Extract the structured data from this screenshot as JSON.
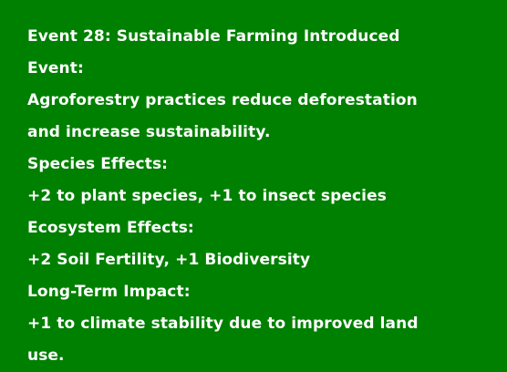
{
  "event": {
    "title": "Event 28: Sustainable Farming Introduced",
    "event_heading": "Event:",
    "description_lines": [
      "Agroforestry practices reduce deforestation",
      "and increase sustainability."
    ],
    "species_heading": "Species Effects:",
    "species_text": "+2 to plant species, +1 to insect species",
    "ecosystem_heading": "Ecosystem Effects:",
    "ecosystem_text": "+2 Soil Fertility, +1 Biodiversity",
    "longterm_heading": "Long-Term Impact:",
    "longterm_lines": [
      "+1 to climate stability due to improved land",
      "use."
    ]
  },
  "colors": {
    "background": "#008000",
    "text": "#ffffff"
  }
}
